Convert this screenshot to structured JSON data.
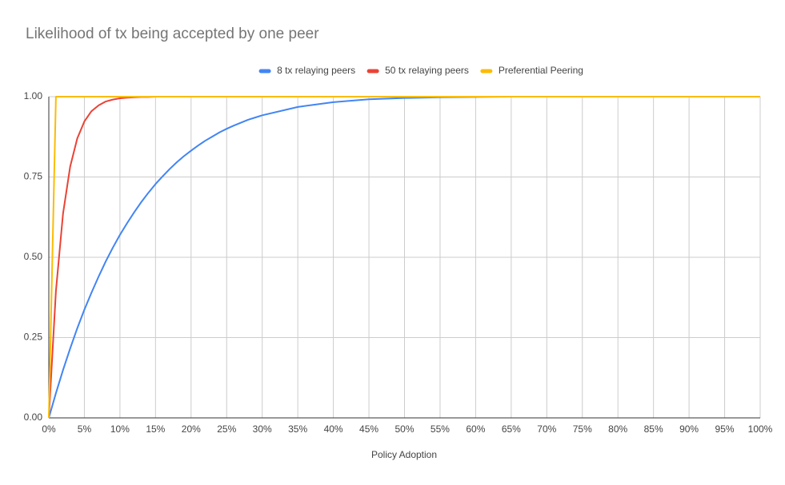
{
  "chart_data": {
    "type": "line",
    "title": "Likelihood of tx being accepted by one peer",
    "x_label": "Policy Adoption",
    "x": [
      0,
      1,
      2,
      3,
      4,
      5,
      6,
      7,
      8,
      9,
      10,
      11,
      12,
      13,
      14,
      15,
      16,
      17,
      18,
      19,
      20,
      21,
      22,
      23,
      24,
      25,
      26,
      27,
      28,
      29,
      30,
      35,
      40,
      45,
      50,
      55,
      60,
      65,
      70,
      75,
      80,
      85,
      90,
      95,
      100
    ],
    "series": [
      {
        "name": "8 tx relaying peers",
        "color": "#4285f4",
        "values": [
          0,
          0.077,
          0.149,
          0.216,
          0.279,
          0.337,
          0.39,
          0.44,
          0.487,
          0.53,
          0.57,
          0.606,
          0.64,
          0.672,
          0.701,
          0.728,
          0.752,
          0.775,
          0.796,
          0.815,
          0.832,
          0.848,
          0.863,
          0.876,
          0.889,
          0.9,
          0.91,
          0.919,
          0.928,
          0.935,
          0.942,
          0.968,
          0.983,
          0.992,
          0.996,
          0.998,
          0.999,
          1,
          1,
          1,
          1,
          1,
          1,
          1,
          1
        ]
      },
      {
        "name": "50 tx relaying peers",
        "color": "#ea4335",
        "values": [
          0,
          0.395,
          0.636,
          0.782,
          0.87,
          0.923,
          0.955,
          0.973,
          0.985,
          0.991,
          0.995,
          0.997,
          0.998,
          0.999,
          0.999,
          1,
          1,
          1,
          1,
          1,
          1,
          1,
          1,
          1,
          1,
          1,
          1,
          1,
          1,
          1,
          1,
          1,
          1,
          1,
          1,
          1,
          1,
          1,
          1,
          1,
          1,
          1,
          1,
          1,
          1
        ]
      },
      {
        "name": "Preferential Peering",
        "color": "#fbbc04",
        "values": [
          0,
          1,
          1,
          1,
          1,
          1,
          1,
          1,
          1,
          1,
          1,
          1,
          1,
          1,
          1,
          1,
          1,
          1,
          1,
          1,
          1,
          1,
          1,
          1,
          1,
          1,
          1,
          1,
          1,
          1,
          1,
          1,
          1,
          1,
          1,
          1,
          1,
          1,
          1,
          1,
          1,
          1,
          1,
          1,
          1
        ]
      }
    ],
    "xlim": [
      0,
      100
    ],
    "xticks": [
      {
        "value": 0,
        "label": "0%"
      },
      {
        "value": 5,
        "label": "5%"
      },
      {
        "value": 10,
        "label": "10%"
      },
      {
        "value": 15,
        "label": "15%"
      },
      {
        "value": 20,
        "label": "20%"
      },
      {
        "value": 25,
        "label": "25%"
      },
      {
        "value": 30,
        "label": "30%"
      },
      {
        "value": 35,
        "label": "35%"
      },
      {
        "value": 40,
        "label": "40%"
      },
      {
        "value": 45,
        "label": "45%"
      },
      {
        "value": 50,
        "label": "50%"
      },
      {
        "value": 55,
        "label": "55%"
      },
      {
        "value": 60,
        "label": "60%"
      },
      {
        "value": 65,
        "label": "65%"
      },
      {
        "value": 70,
        "label": "70%"
      },
      {
        "value": 75,
        "label": "75%"
      },
      {
        "value": 80,
        "label": "80%"
      },
      {
        "value": 85,
        "label": "85%"
      },
      {
        "value": 90,
        "label": "90%"
      },
      {
        "value": 95,
        "label": "95%"
      },
      {
        "value": 100,
        "label": "100%"
      }
    ],
    "ylim": [
      0,
      1
    ],
    "yticks": [
      {
        "value": 0,
        "label": "0.00"
      },
      {
        "value": 0.25,
        "label": "0.25"
      },
      {
        "value": 0.5,
        "label": "0.50"
      },
      {
        "value": 0.75,
        "label": "0.75"
      },
      {
        "value": 1,
        "label": "1.00"
      }
    ],
    "grid": true,
    "legend": "top"
  }
}
